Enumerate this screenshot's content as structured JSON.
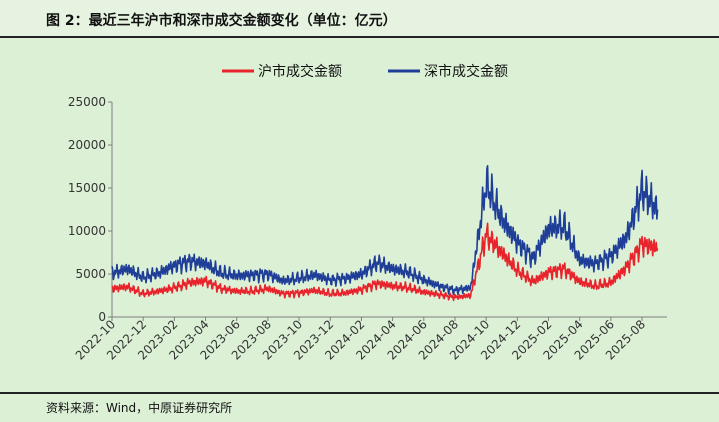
{
  "title": "图 2：最近三年沪市和深市成交金额变化（单位：亿元）",
  "source": "资料来源：Wind，中原证券研究所",
  "chart_data": {
    "type": "line",
    "title": "图 2：最近三年沪市和深市成交金额变化（单位：亿元）",
    "xlabel": "",
    "ylabel": "",
    "ylim": [
      0,
      25000
    ],
    "y_ticks": [
      0,
      5000,
      10000,
      15000,
      20000,
      25000
    ],
    "y_tick_labels": [
      "0",
      "5000",
      "10000",
      "15000",
      "20000",
      "25000"
    ],
    "x_ticks": [
      "2022-10",
      "2022-12",
      "2023-02",
      "2023-04",
      "2023-06",
      "2023-08",
      "2023-10",
      "2023-12",
      "2024-02",
      "2024-04",
      "2024-06",
      "2024-08",
      "2024-10",
      "2024-12",
      "2025-02",
      "2025-04",
      "2025-06",
      "2025-08"
    ],
    "grid": false,
    "legend_position": "top-center",
    "x": [
      "2022-10",
      "2022-11",
      "2022-12",
      "2023-01",
      "2023-02",
      "2023-03",
      "2023-04",
      "2023-05",
      "2023-06",
      "2023-07",
      "2023-08",
      "2023-09",
      "2023-10",
      "2023-11",
      "2023-12",
      "2024-01",
      "2024-02",
      "2024-03",
      "2024-04",
      "2024-05",
      "2024-06",
      "2024-07",
      "2024-08",
      "2024-09",
      "2024-10",
      "2024-11",
      "2024-12",
      "2025-01",
      "2025-02",
      "2025-03",
      "2025-04",
      "2025-05",
      "2025-06",
      "2025-07",
      "2025-08",
      "2025-09"
    ],
    "series": [
      {
        "name": "沪市成交金额",
        "color": "#e8232b",
        "values": [
          3300,
          3500,
          2700,
          3000,
          3400,
          4000,
          4200,
          3300,
          3000,
          3000,
          3300,
          2700,
          2800,
          3100,
          2700,
          2800,
          3200,
          3900,
          3600,
          3400,
          2900,
          2600,
          2300,
          2500,
          9600,
          7500,
          5400,
          4100,
          5200,
          5600,
          4100,
          3600,
          4000,
          5800,
          8500,
          8000
        ]
      },
      {
        "name": "深市成交金额",
        "color": "#1f3e97",
        "values": [
          5100,
          5600,
          4600,
          5100,
          6000,
          6500,
          6200,
          5100,
          4800,
          4900,
          5000,
          4200,
          4500,
          4900,
          4300,
          4500,
          5000,
          6300,
          5600,
          5200,
          4300,
          3600,
          3100,
          3400,
          15500,
          11400,
          8700,
          6800,
          10300,
          10600,
          6600,
          6200,
          7100,
          9300,
          14700,
          12500
        ]
      }
    ]
  }
}
